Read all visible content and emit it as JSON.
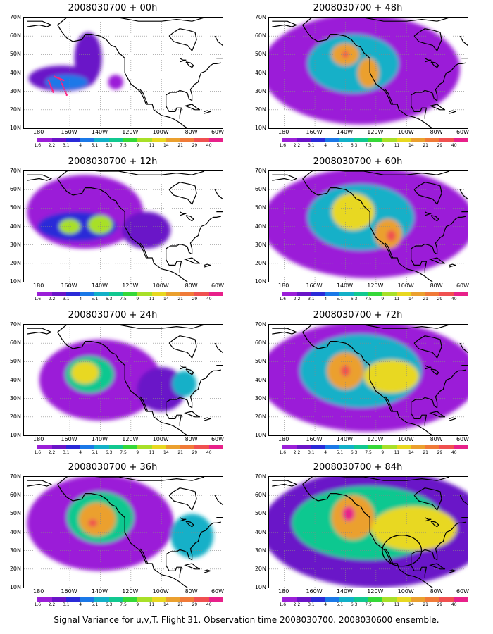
{
  "caption": "Signal Variance for u,v,T. Flight 31. Observation time 2008030700. 2008030600 ensemble.",
  "lat_labels": [
    "70N",
    "60N",
    "50N",
    "40N",
    "30N",
    "20N",
    "10N"
  ],
  "lon_labels": [
    "180",
    "160W",
    "140W",
    "120W",
    "100W",
    "80W",
    "60W"
  ],
  "colorbar": {
    "labels": [
      "1.6",
      "2.2",
      "3.1",
      "4",
      "5.1",
      "6.3",
      "7.5",
      "9",
      "11",
      "14",
      "21",
      "29",
      "40"
    ],
    "colors": [
      "#ffffff",
      "#9b1fd8",
      "#6a14c8",
      "#2a2ad8",
      "#1a78e8",
      "#12b0c8",
      "#11c890",
      "#35d838",
      "#a8e028",
      "#e8d820",
      "#eba02e",
      "#f07a38",
      "#f05050",
      "#e8208a"
    ]
  },
  "panels": [
    {
      "id": "p00",
      "title": "2008030700 + 00h",
      "col": 0,
      "row": 0,
      "ship_track": true,
      "circle": false,
      "blobs": [
        {
          "lon": -165,
          "lat": 37,
          "rx": 22,
          "ry": 7,
          "level": 2
        },
        {
          "lon": -148,
          "lat": 48,
          "rx": 9,
          "ry": 14,
          "level": 2
        },
        {
          "lon": -130,
          "lat": 35,
          "rx": 5,
          "ry": 4,
          "level": 1
        },
        {
          "lon": -162,
          "lat": 35,
          "rx": 14,
          "ry": 4,
          "level": 4
        }
      ]
    },
    {
      "id": "p12",
      "title": "2008030700 + 12h",
      "col": 0,
      "row": 1,
      "ship_track": false,
      "circle": false,
      "blobs": [
        {
          "lon": -150,
          "lat": 48,
          "rx": 38,
          "ry": 20,
          "level": 1
        },
        {
          "lon": -155,
          "lat": 40,
          "rx": 26,
          "ry": 8,
          "level": 3
        },
        {
          "lon": -140,
          "lat": 41,
          "rx": 8,
          "ry": 5,
          "level": 8
        },
        {
          "lon": -160,
          "lat": 40,
          "rx": 7,
          "ry": 4,
          "level": 8
        },
        {
          "lon": -110,
          "lat": 38,
          "rx": 16,
          "ry": 10,
          "level": 2
        }
      ]
    },
    {
      "id": "p24",
      "title": "2008030700 + 24h",
      "col": 0,
      "row": 2,
      "ship_track": false,
      "circle": false,
      "blobs": [
        {
          "lon": -140,
          "lat": 40,
          "rx": 40,
          "ry": 22,
          "level": 1
        },
        {
          "lon": -147,
          "lat": 43,
          "rx": 16,
          "ry": 10,
          "level": 6
        },
        {
          "lon": -150,
          "lat": 44,
          "rx": 9,
          "ry": 6,
          "level": 9
        },
        {
          "lon": -100,
          "lat": 35,
          "rx": 16,
          "ry": 12,
          "level": 2
        },
        {
          "lon": -85,
          "lat": 38,
          "rx": 8,
          "ry": 7,
          "level": 5
        }
      ]
    },
    {
      "id": "p36",
      "title": "2008030700 + 36h",
      "col": 0,
      "row": 3,
      "ship_track": false,
      "circle": false,
      "blobs": [
        {
          "lon": -140,
          "lat": 45,
          "rx": 48,
          "ry": 26,
          "level": 1
        },
        {
          "lon": -140,
          "lat": 48,
          "rx": 22,
          "ry": 14,
          "level": 6
        },
        {
          "lon": -142,
          "lat": 47,
          "rx": 12,
          "ry": 9,
          "level": 10
        },
        {
          "lon": -145,
          "lat": 45,
          "rx": 3,
          "ry": 2,
          "level": 12
        },
        {
          "lon": -80,
          "lat": 38,
          "rx": 14,
          "ry": 12,
          "level": 5
        }
      ]
    },
    {
      "id": "p48",
      "title": "2008030700 + 48h",
      "col": 1,
      "row": 0,
      "ship_track": false,
      "circle": false,
      "blobs": [
        {
          "lon": -130,
          "lat": 42,
          "rx": 65,
          "ry": 30,
          "level": 1
        },
        {
          "lon": -135,
          "lat": 45,
          "rx": 30,
          "ry": 16,
          "level": 5
        },
        {
          "lon": -140,
          "lat": 50,
          "rx": 9,
          "ry": 6,
          "level": 10
        },
        {
          "lon": -125,
          "lat": 40,
          "rx": 7,
          "ry": 8,
          "level": 10
        },
        {
          "lon": -140,
          "lat": 50,
          "rx": 2,
          "ry": 2,
          "level": 12
        }
      ]
    },
    {
      "id": "p60",
      "title": "2008030700 + 60h",
      "col": 1,
      "row": 1,
      "ship_track": false,
      "circle": false,
      "blobs": [
        {
          "lon": -125,
          "lat": 42,
          "rx": 70,
          "ry": 30,
          "level": 1
        },
        {
          "lon": -130,
          "lat": 45,
          "rx": 35,
          "ry": 18,
          "level": 5
        },
        {
          "lon": -135,
          "lat": 48,
          "rx": 14,
          "ry": 10,
          "level": 9
        },
        {
          "lon": -112,
          "lat": 36,
          "rx": 9,
          "ry": 8,
          "level": 10
        },
        {
          "lon": -110,
          "lat": 35,
          "rx": 3,
          "ry": 3,
          "level": 12
        }
      ]
    },
    {
      "id": "p72",
      "title": "2008030700 + 72h",
      "col": 1,
      "row": 2,
      "ship_track": false,
      "circle": false,
      "blobs": [
        {
          "lon": -125,
          "lat": 42,
          "rx": 72,
          "ry": 30,
          "level": 1
        },
        {
          "lon": -130,
          "lat": 45,
          "rx": 40,
          "ry": 20,
          "level": 5
        },
        {
          "lon": -140,
          "lat": 45,
          "rx": 12,
          "ry": 10,
          "level": 10
        },
        {
          "lon": -110,
          "lat": 42,
          "rx": 18,
          "ry": 9,
          "level": 9
        },
        {
          "lon": -140,
          "lat": 45,
          "rx": 3,
          "ry": 3,
          "level": 12
        }
      ]
    },
    {
      "id": "p84",
      "title": "2008030700 + 84h",
      "col": 1,
      "row": 3,
      "ship_track": false,
      "circle": true,
      "blobs": [
        {
          "lon": -120,
          "lat": 42,
          "rx": 75,
          "ry": 32,
          "level": 2
        },
        {
          "lon": -125,
          "lat": 45,
          "rx": 50,
          "ry": 20,
          "level": 6
        },
        {
          "lon": -135,
          "lat": 48,
          "rx": 14,
          "ry": 12,
          "level": 10
        },
        {
          "lon": -95,
          "lat": 42,
          "rx": 28,
          "ry": 12,
          "level": 9
        },
        {
          "lon": -138,
          "lat": 50,
          "rx": 4,
          "ry": 4,
          "level": 13
        }
      ]
    }
  ]
}
